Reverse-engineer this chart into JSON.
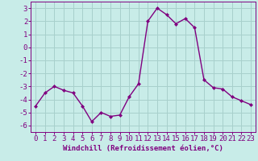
{
  "x": [
    0,
    1,
    2,
    3,
    4,
    5,
    6,
    7,
    8,
    9,
    10,
    11,
    12,
    13,
    14,
    15,
    16,
    17,
    18,
    19,
    20,
    21,
    22,
    23
  ],
  "y": [
    -4.5,
    -3.5,
    -3.0,
    -3.3,
    -3.5,
    -4.5,
    -5.7,
    -5.0,
    -5.3,
    -5.2,
    -3.8,
    -2.8,
    2.0,
    3.0,
    2.5,
    1.8,
    2.2,
    1.5,
    -2.5,
    -3.1,
    -3.2,
    -3.8,
    -4.1,
    -4.4
  ],
  "line_color": "#800080",
  "marker": "D",
  "marker_size": 2.0,
  "bg_color": "#c8ece8",
  "grid_color": "#a8d0cc",
  "xlabel": "Windchill (Refroidissement éolien,°C)",
  "xlabel_fontsize": 6.5,
  "xtick_labels": [
    "0",
    "1",
    "2",
    "3",
    "4",
    "5",
    "6",
    "7",
    "8",
    "9",
    "10",
    "11",
    "12",
    "13",
    "14",
    "15",
    "16",
    "17",
    "18",
    "19",
    "20",
    "21",
    "22",
    "23"
  ],
  "ylim": [
    -6.5,
    3.5
  ],
  "yticks": [
    -6,
    -5,
    -4,
    -3,
    -2,
    -1,
    0,
    1,
    2,
    3
  ],
  "tick_fontsize": 6.5,
  "line_width": 1.0
}
